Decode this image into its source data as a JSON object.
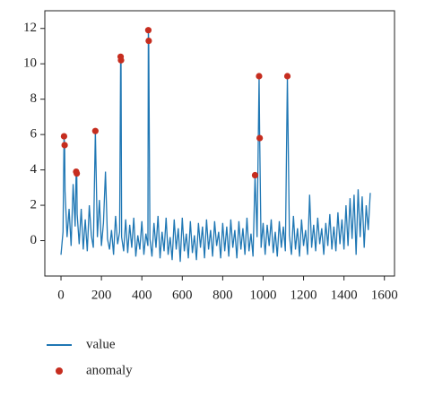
{
  "chart_data": {
    "type": "line",
    "xlim": [
      -80,
      1650
    ],
    "ylim": [
      -2,
      13
    ],
    "xticks": [
      0,
      200,
      400,
      600,
      800,
      1000,
      1200,
      1400,
      1600
    ],
    "yticks": [
      0,
      2,
      4,
      6,
      8,
      10,
      12
    ],
    "grid": false,
    "legend": "below",
    "series": [
      {
        "name": "value",
        "type": "line",
        "color": "#1f77b4",
        "x": [
          0,
          10,
          15,
          18,
          20,
          30,
          40,
          50,
          60,
          70,
          75,
          78,
          80,
          90,
          100,
          110,
          120,
          130,
          140,
          150,
          160,
          170,
          180,
          190,
          200,
          210,
          220,
          230,
          240,
          250,
          260,
          270,
          280,
          290,
          295,
          297,
          300,
          310,
          320,
          330,
          340,
          350,
          360,
          370,
          380,
          390,
          400,
          410,
          420,
          430,
          432,
          434,
          440,
          450,
          460,
          470,
          480,
          490,
          500,
          510,
          520,
          530,
          540,
          550,
          560,
          570,
          580,
          590,
          600,
          610,
          620,
          630,
          640,
          650,
          660,
          670,
          680,
          690,
          700,
          710,
          720,
          730,
          740,
          750,
          760,
          770,
          780,
          790,
          800,
          810,
          820,
          830,
          840,
          850,
          860,
          870,
          880,
          890,
          900,
          910,
          920,
          930,
          940,
          950,
          960,
          970,
          980,
          983,
          990,
          1000,
          1010,
          1020,
          1030,
          1040,
          1050,
          1060,
          1070,
          1080,
          1090,
          1100,
          1110,
          1120,
          1130,
          1140,
          1150,
          1160,
          1170,
          1180,
          1190,
          1200,
          1210,
          1220,
          1230,
          1240,
          1250,
          1260,
          1270,
          1280,
          1290,
          1300,
          1310,
          1320,
          1330,
          1340,
          1350,
          1360,
          1370,
          1380,
          1390,
          1400,
          1410,
          1420,
          1430,
          1440,
          1450,
          1460,
          1470,
          1480,
          1490,
          1500,
          1510,
          1520,
          1530
        ],
        "values": [
          -0.8,
          0.5,
          5.9,
          5.4,
          2.8,
          0.2,
          1.8,
          -0.3,
          3.2,
          0.8,
          3.9,
          3.8,
          1.5,
          -0.2,
          1.8,
          -0.5,
          1.2,
          -0.6,
          2.0,
          0.3,
          -0.4,
          6.2,
          0.2,
          2.3,
          -0.3,
          1.0,
          3.9,
          0.1,
          -0.5,
          0.6,
          -0.8,
          1.4,
          -0.2,
          0.5,
          10.4,
          10.2,
          0.2,
          -0.6,
          1.2,
          -0.7,
          0.9,
          -0.4,
          1.3,
          -0.9,
          0.3,
          -0.5,
          1.1,
          -0.8,
          0.4,
          -0.3,
          11.9,
          11.3,
          0.1,
          -0.9,
          1.0,
          -0.4,
          1.4,
          -1.0,
          0.5,
          -0.6,
          1.3,
          -0.8,
          0.2,
          -1.1,
          1.2,
          -0.5,
          0.7,
          -1.2,
          1.3,
          -0.6,
          0.4,
          -1.0,
          1.1,
          -0.7,
          0.3,
          -1.1,
          1.0,
          -0.4,
          0.8,
          -1.0,
          1.2,
          -0.5,
          0.6,
          -0.9,
          1.1,
          -0.3,
          0.5,
          -1.0,
          1.0,
          -0.6,
          0.8,
          -0.9,
          1.2,
          -0.4,
          0.6,
          -1.0,
          1.1,
          -0.5,
          0.7,
          -0.8,
          1.3,
          -0.6,
          0.4,
          -0.9,
          3.7,
          0.2,
          9.3,
          5.8,
          -0.4,
          1.0,
          -0.8,
          0.9,
          -0.3,
          1.2,
          -0.7,
          0.5,
          -0.9,
          1.1,
          -0.4,
          0.8,
          -0.6,
          9.3,
          0.3,
          -0.8,
          1.4,
          -0.5,
          0.7,
          -0.9,
          1.2,
          -0.3,
          0.6,
          -0.8,
          2.6,
          -0.4,
          0.9,
          -0.6,
          1.3,
          -0.2,
          0.7,
          -0.8,
          1.0,
          -0.3,
          1.5,
          -0.5,
          0.8,
          -0.6,
          1.6,
          -0.2,
          1.2,
          -0.5,
          2.0,
          -0.3,
          2.4,
          0.1,
          2.6,
          -0.8,
          2.9,
          0.2,
          2.5,
          -0.4,
          2.0,
          0.6,
          2.7
        ]
      },
      {
        "name": "anomaly",
        "type": "scatter",
        "color": "#c62d1f",
        "x": [
          15,
          18,
          75,
          78,
          170,
          295,
          297,
          432,
          434,
          960,
          980,
          983,
          1120
        ],
        "values": [
          5.9,
          5.4,
          3.9,
          3.8,
          6.2,
          10.4,
          10.2,
          11.9,
          11.3,
          3.7,
          9.3,
          5.8,
          9.3
        ]
      }
    ]
  }
}
